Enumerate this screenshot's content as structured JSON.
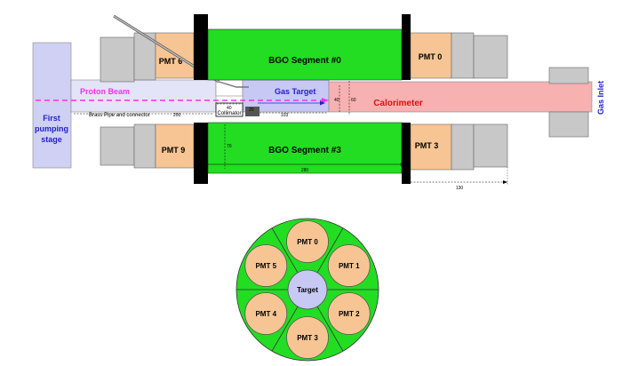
{
  "side_view": {
    "bgo_top_label": "BGO Segment #0",
    "bgo_bottom_label": "BGO Segment #3",
    "pmt_top_left": "PMT 6",
    "pmt_top_right": "PMT 0",
    "pmt_bottom_left": "PMT 9",
    "pmt_bottom_right": "PMT 3",
    "proton_beam_label": "Proton Beam",
    "gas_target_label": "Gas Target",
    "calorimeter_label": "Calorimeter",
    "gas_inlet_label": "Gas Inlet",
    "first_pumping_stage_lines": [
      "First",
      "pumping",
      "stage"
    ],
    "brass_pipe_label": "Brass Pipe and connector",
    "collimator_label": "Collimator",
    "dimensions": {
      "brass_length": "200",
      "collimator_length": "40",
      "target_a": "20",
      "target_to_cal": "103",
      "cal_height_a": "40",
      "cal_height_b": "60",
      "bgo_radius": "70",
      "bgo_length": "280",
      "pmt_length": "130"
    }
  },
  "front_view": {
    "center_label": "Target",
    "pmts": [
      "PMT 0",
      "PMT 1",
      "PMT 2",
      "PMT 3",
      "PMT 4",
      "PMT 5"
    ]
  },
  "colors": {
    "bgo": "#22dd22",
    "pmt": "#f7c593",
    "grey_block": "#c8c8c8",
    "pumping_stage": "#cfd0f3",
    "gas_target": "#c8c8f5",
    "calorimeter": "#f7b1b1",
    "proton_beam": "#ee33ee",
    "blue_text": "#2222cc",
    "red_text": "#dd1111"
  }
}
